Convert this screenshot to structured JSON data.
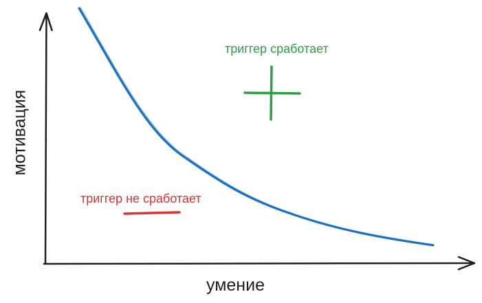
{
  "axes": {
    "x_label": "умение",
    "y_label": "мотивация"
  },
  "regions": {
    "above_curve": {
      "label": "триггер сработает",
      "symbol": "plus",
      "color": "#2f9e44"
    },
    "below_curve": {
      "label": "триггер не сработает",
      "symbol": "minus",
      "color": "#e03131"
    }
  },
  "curve": {
    "color": "#1971c2",
    "shape": "decreasing convex"
  },
  "axis_color": "#1e1e1e"
}
